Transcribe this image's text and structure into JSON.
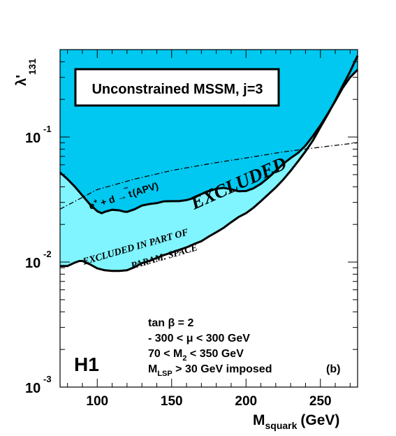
{
  "chart_data": {
    "type": "area",
    "title": "Unconstrained MSSM, j=3",
    "xlabel_main": "M",
    "xlabel_sub": "squark",
    "xlabel_unit": "(GeV)",
    "ylabel_main": "λ'",
    "ylabel_sub": "131",
    "x_scale": "linear",
    "y_scale": "log",
    "xlim": [
      75,
      275
    ],
    "ylim": [
      0.001,
      0.5
    ],
    "x_ticks": [
      {
        "value": 100,
        "label": "100"
      },
      {
        "value": 150,
        "label": "150"
      },
      {
        "value": 200,
        "label": "200"
      },
      {
        "value": 250,
        "label": "250"
      }
    ],
    "y_ticks": [
      {
        "value": 0.1,
        "base": "10",
        "exp": "-1"
      },
      {
        "value": 0.01,
        "base": "10",
        "exp": "-2"
      },
      {
        "value": 0.001,
        "base": "10",
        "exp": "-3"
      }
    ],
    "regions": [
      {
        "name": "EXCLUDED",
        "color": "#00c8f0",
        "boundary": [
          [
            75,
            0.052
          ],
          [
            80,
            0.046
          ],
          [
            85,
            0.04
          ],
          [
            90,
            0.034
          ],
          [
            95,
            0.029
          ],
          [
            100,
            0.0255
          ],
          [
            103,
            0.0246
          ],
          [
            105,
            0.0252
          ],
          [
            110,
            0.0262
          ],
          [
            115,
            0.0259
          ],
          [
            118,
            0.0253
          ],
          [
            120,
            0.0252
          ],
          [
            125,
            0.0264
          ],
          [
            130,
            0.0283
          ],
          [
            135,
            0.0291
          ],
          [
            140,
            0.0296
          ],
          [
            145,
            0.0306
          ],
          [
            150,
            0.0307
          ],
          [
            155,
            0.0307
          ],
          [
            160,
            0.0313
          ],
          [
            165,
            0.0325
          ],
          [
            170,
            0.035
          ],
          [
            175,
            0.0369
          ],
          [
            180,
            0.0385
          ],
          [
            185,
            0.0392
          ],
          [
            190,
            0.0382
          ],
          [
            195,
            0.0368
          ],
          [
            200,
            0.037
          ],
          [
            205,
            0.0389
          ],
          [
            210,
            0.0423
          ],
          [
            215,
            0.0472
          ],
          [
            220,
            0.0536
          ],
          [
            225,
            0.061
          ],
          [
            230,
            0.0679
          ],
          [
            235,
            0.0747
          ],
          [
            240,
            0.0854
          ],
          [
            245,
            0.102
          ],
          [
            250,
            0.124
          ],
          [
            255,
            0.154
          ],
          [
            260,
            0.194
          ],
          [
            265,
            0.247
          ],
          [
            270,
            0.3
          ],
          [
            275,
            0.345
          ]
        ]
      },
      {
        "name": "EXCLUDED IN PART OF PARAM. SPACE",
        "color": "#80f4ff",
        "boundary": [
          [
            75,
            0.0093
          ],
          [
            80,
            0.0093
          ],
          [
            85,
            0.0099
          ],
          [
            88,
            0.0102
          ],
          [
            90,
            0.0102
          ],
          [
            95,
            0.0096
          ],
          [
            100,
            0.0089
          ],
          [
            105,
            0.0086
          ],
          [
            110,
            0.0085
          ],
          [
            115,
            0.0085
          ],
          [
            120,
            0.0086
          ],
          [
            125,
            0.0091
          ],
          [
            130,
            0.0098
          ],
          [
            135,
            0.0102
          ],
          [
            140,
            0.0108
          ],
          [
            145,
            0.0114
          ],
          [
            150,
            0.0119
          ],
          [
            155,
            0.0125
          ],
          [
            160,
            0.0131
          ],
          [
            165,
            0.0139
          ],
          [
            170,
            0.0147
          ],
          [
            175,
            0.016
          ],
          [
            180,
            0.0173
          ],
          [
            185,
            0.0188
          ],
          [
            190,
            0.0208
          ],
          [
            195,
            0.0229
          ],
          [
            200,
            0.0246
          ],
          [
            205,
            0.0272
          ],
          [
            210,
            0.0307
          ],
          [
            215,
            0.0348
          ],
          [
            220,
            0.0395
          ],
          [
            225,
            0.0456
          ],
          [
            230,
            0.0537
          ],
          [
            235,
            0.064
          ],
          [
            240,
            0.0767
          ],
          [
            245,
            0.0939
          ],
          [
            250,
            0.12
          ],
          [
            255,
            0.152
          ],
          [
            260,
            0.196
          ],
          [
            265,
            0.257
          ],
          [
            270,
            0.334
          ],
          [
            275,
            0.447
          ]
        ]
      }
    ],
    "series": [
      {
        "name": "e⁺ + d → t̃ (APV)",
        "style": "dash-dot",
        "x": [
          75,
          100,
          125,
          150,
          175,
          200,
          225,
          250,
          275
        ],
        "y": [
          0.0265,
          0.038,
          0.046,
          0.054,
          0.061,
          0.068,
          0.076,
          0.083,
          0.09
        ]
      }
    ],
    "annotations": {
      "excluded": "EXCLUDED",
      "part_line1": "EXCLUDED IN PART OF",
      "part_line2": "PARAM. SPACE",
      "apv_base": "e",
      "apv_sup": "+",
      "apv_rest": " + d →",
      "apv_t": "t",
      "apv_tilde": "~",
      "apv_tail": " (APV)",
      "params": [
        "tan β = 2",
        "- 300 < μ < 300 GeV",
        "70 < M",
        "2",
        " < 350 GeV",
        "M",
        "LSP",
        " > 30 GeV imposed"
      ],
      "panel": "(b)",
      "experiment": "H1"
    },
    "grid": false,
    "legend": "none"
  }
}
